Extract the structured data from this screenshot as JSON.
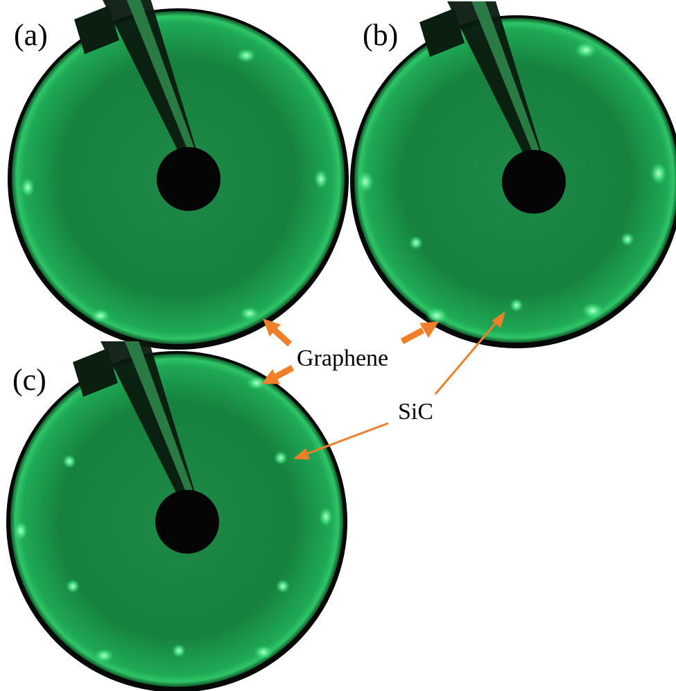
{
  "panels": [
    {
      "label": "(a)"
    },
    {
      "label": "(b)"
    },
    {
      "label": "(c)"
    }
  ],
  "annotations": {
    "graphene": "Graphene",
    "sic": "SiC"
  }
}
